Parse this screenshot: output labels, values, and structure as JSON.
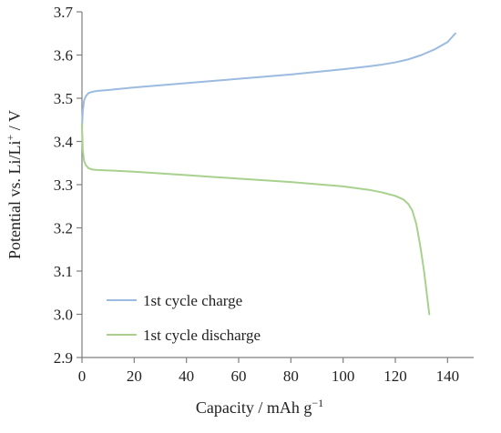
{
  "chart_data": {
    "type": "line",
    "title": "",
    "xlabel": "Capacity / mAh g",
    "xlabel_sup": "−1",
    "ylabel_pre": "Potential vs. Li/Li",
    "ylabel_sup": "+",
    "ylabel_post": " / V",
    "xlim": [
      0,
      150
    ],
    "ylim": [
      2.9,
      3.7
    ],
    "xticks": [
      0,
      20,
      40,
      60,
      80,
      100,
      120,
      140
    ],
    "xtick_labels": [
      "0",
      "20",
      "40",
      "60",
      "80",
      "100",
      "120",
      "140"
    ],
    "yticks": [
      2.9,
      3.0,
      3.1,
      3.2,
      3.3,
      3.4,
      3.5,
      3.6,
      3.7
    ],
    "ytick_labels": [
      "2.9",
      "3.0",
      "3.1",
      "3.2",
      "3.3",
      "3.4",
      "3.5",
      "3.6",
      "3.7"
    ],
    "grid": false,
    "legend_position": "bottom-left",
    "series": [
      {
        "name": "1st cycle charge",
        "color": "#9bbbe0",
        "x": [
          0,
          0.3,
          0.8,
          1.5,
          2.5,
          4,
          6,
          10,
          20,
          30,
          40,
          50,
          60,
          70,
          80,
          90,
          100,
          110,
          115,
          120,
          125,
          130,
          135,
          140,
          143
        ],
        "y": [
          3.43,
          3.47,
          3.495,
          3.505,
          3.512,
          3.515,
          3.517,
          3.519,
          3.525,
          3.53,
          3.535,
          3.54,
          3.545,
          3.55,
          3.555,
          3.561,
          3.567,
          3.574,
          3.578,
          3.583,
          3.59,
          3.6,
          3.613,
          3.63,
          3.65
        ]
      },
      {
        "name": "1st cycle discharge",
        "color": "#a8d18d",
        "x": [
          0,
          0.3,
          0.8,
          1.5,
          2.5,
          4,
          6,
          10,
          20,
          30,
          40,
          50,
          60,
          70,
          80,
          90,
          100,
          110,
          115,
          120,
          123,
          125,
          126.5,
          128,
          129.5,
          131,
          132,
          133
        ],
        "y": [
          3.44,
          3.38,
          3.355,
          3.345,
          3.338,
          3.335,
          3.334,
          3.333,
          3.33,
          3.326,
          3.322,
          3.318,
          3.314,
          3.31,
          3.306,
          3.301,
          3.296,
          3.288,
          3.282,
          3.274,
          3.266,
          3.255,
          3.24,
          3.21,
          3.16,
          3.1,
          3.05,
          3.0
        ]
      }
    ]
  }
}
